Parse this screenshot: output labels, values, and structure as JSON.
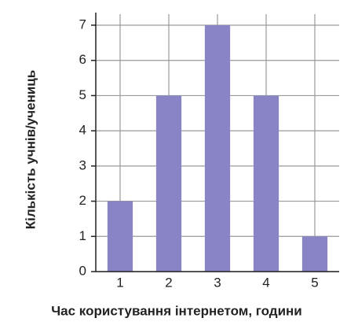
{
  "chart_data": {
    "type": "bar",
    "x_label": "Час користування інтернетом, години",
    "y_label": "Кількість учнів/учениць",
    "categories": [
      "1",
      "2",
      "3",
      "4",
      "5"
    ],
    "values": [
      2,
      5,
      7,
      5,
      1
    ],
    "color": "#8884c6",
    "ylim": [
      0,
      7
    ],
    "yticks": [
      0,
      1,
      2,
      3,
      4,
      5,
      6,
      7
    ],
    "grid": true
  }
}
